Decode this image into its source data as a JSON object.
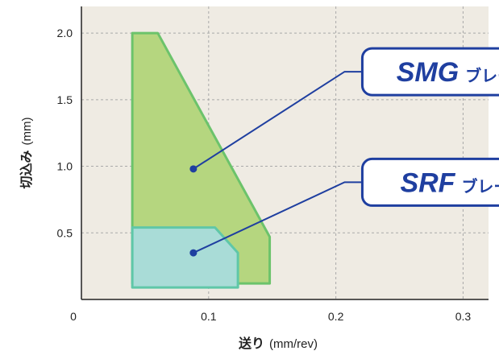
{
  "chart_data": {
    "type": "area",
    "xlabel": {
      "main": "送り",
      "unit": "(mm/rev)"
    },
    "ylabel": {
      "main": "切込み",
      "unit": "(mm)"
    },
    "xlim": [
      0,
      0.32
    ],
    "ylim": [
      0,
      2.2
    ],
    "x_ticks": [
      "0",
      "0.1",
      "0.2",
      "0.3"
    ],
    "x_tick_values": [
      0,
      0.1,
      0.2,
      0.3
    ],
    "y_ticks": [
      "0.5",
      "1.0",
      "1.5",
      "2.0"
    ],
    "y_tick_values": [
      0.5,
      1.0,
      1.5,
      2.0
    ],
    "grid": true,
    "series": [
      {
        "name_main": "SMG",
        "name_suffix": "ブレーカ",
        "fill": "#b5d67f",
        "stroke": "#6cc36b",
        "points": [
          [
            0.04,
            2.0
          ],
          [
            0.06,
            2.0
          ],
          [
            0.148,
            0.47
          ],
          [
            0.148,
            0.12
          ],
          [
            0.04,
            0.12
          ]
        ],
        "marker": [
          0.088,
          0.98
        ],
        "callout_label_center": [
          0.3,
          1.71
        ]
      },
      {
        "name_main": "SRF",
        "name_suffix": "ブレーカ",
        "fill": "#a9dcd7",
        "stroke": "#5fc7a8",
        "points": [
          [
            0.04,
            0.54
          ],
          [
            0.105,
            0.54
          ],
          [
            0.123,
            0.35
          ],
          [
            0.123,
            0.09
          ],
          [
            0.04,
            0.09
          ]
        ],
        "marker": [
          0.088,
          0.35
        ],
        "callout_label_center": [
          0.3,
          0.88
        ]
      }
    ],
    "colors": {
      "plot_bg": "#efebe3",
      "grid": "#a9a9a9",
      "callout_border": "#1f3fa0",
      "marker": "#1f3fa0"
    }
  }
}
